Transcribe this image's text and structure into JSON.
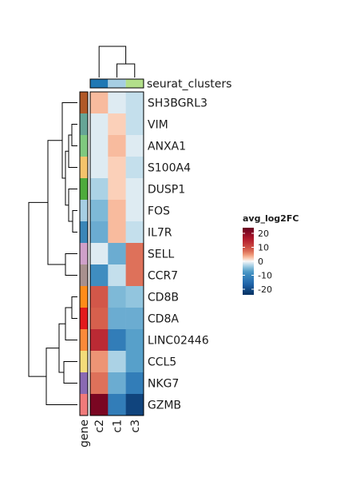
{
  "chart_data": {
    "type": "heatmap",
    "columns": [
      "c2",
      "c1",
      "c3"
    ],
    "rows": [
      "SH3BGRL3",
      "VIM",
      "ANXA1",
      "S100A4",
      "DUSP1",
      "FOS",
      "IL7R",
      "SELL",
      "CCR7",
      "CD8B",
      "CD8A",
      "LINC02446",
      "CCL5",
      "NKG7",
      "GZMB"
    ],
    "values": [
      [
        3,
        -1,
        -2
      ],
      [
        -1,
        2,
        -2
      ],
      [
        -1,
        3,
        -1
      ],
      [
        -1,
        2,
        -2
      ],
      [
        -3,
        2,
        -1
      ],
      [
        -5,
        3,
        -1
      ],
      [
        -6,
        3,
        -2
      ],
      [
        -1,
        -6,
        7
      ],
      [
        -9,
        -2,
        7
      ],
      [
        9,
        -5,
        -4
      ],
      [
        8,
        -6,
        -6
      ],
      [
        14,
        -12,
        -7
      ],
      [
        5,
        -3,
        -7
      ],
      [
        7,
        -6,
        -12
      ],
      [
        22,
        -12,
        -21
      ]
    ],
    "annotation_title": "seurat_clusters",
    "annotation_colors": {
      "c2": "#1f78b4",
      "c1": "#a6cee3",
      "c3": "#b2df8a"
    },
    "row_annotation_title": "gene",
    "row_annotation_colors": [
      "#b15928",
      "#66a596",
      "#7fc97f",
      "#f4c46b",
      "#4dab3c",
      "#a6cee3",
      "#3a86b8",
      "#cfa0c9",
      "#a8908e",
      "#ff8c1a",
      "#e31a1c",
      "#fb8a3a",
      "#f3dc7a",
      "#8a6ab3",
      "#f07a7a"
    ],
    "legend": {
      "title": "avg_log2FC",
      "ticks": [
        20,
        10,
        0,
        -10,
        -20
      ],
      "range": [
        -24,
        24
      ],
      "placement": "right"
    },
    "colors": {
      "high": "#67001f",
      "mid": "#f7f7f7",
      "low": "#053061"
    }
  }
}
